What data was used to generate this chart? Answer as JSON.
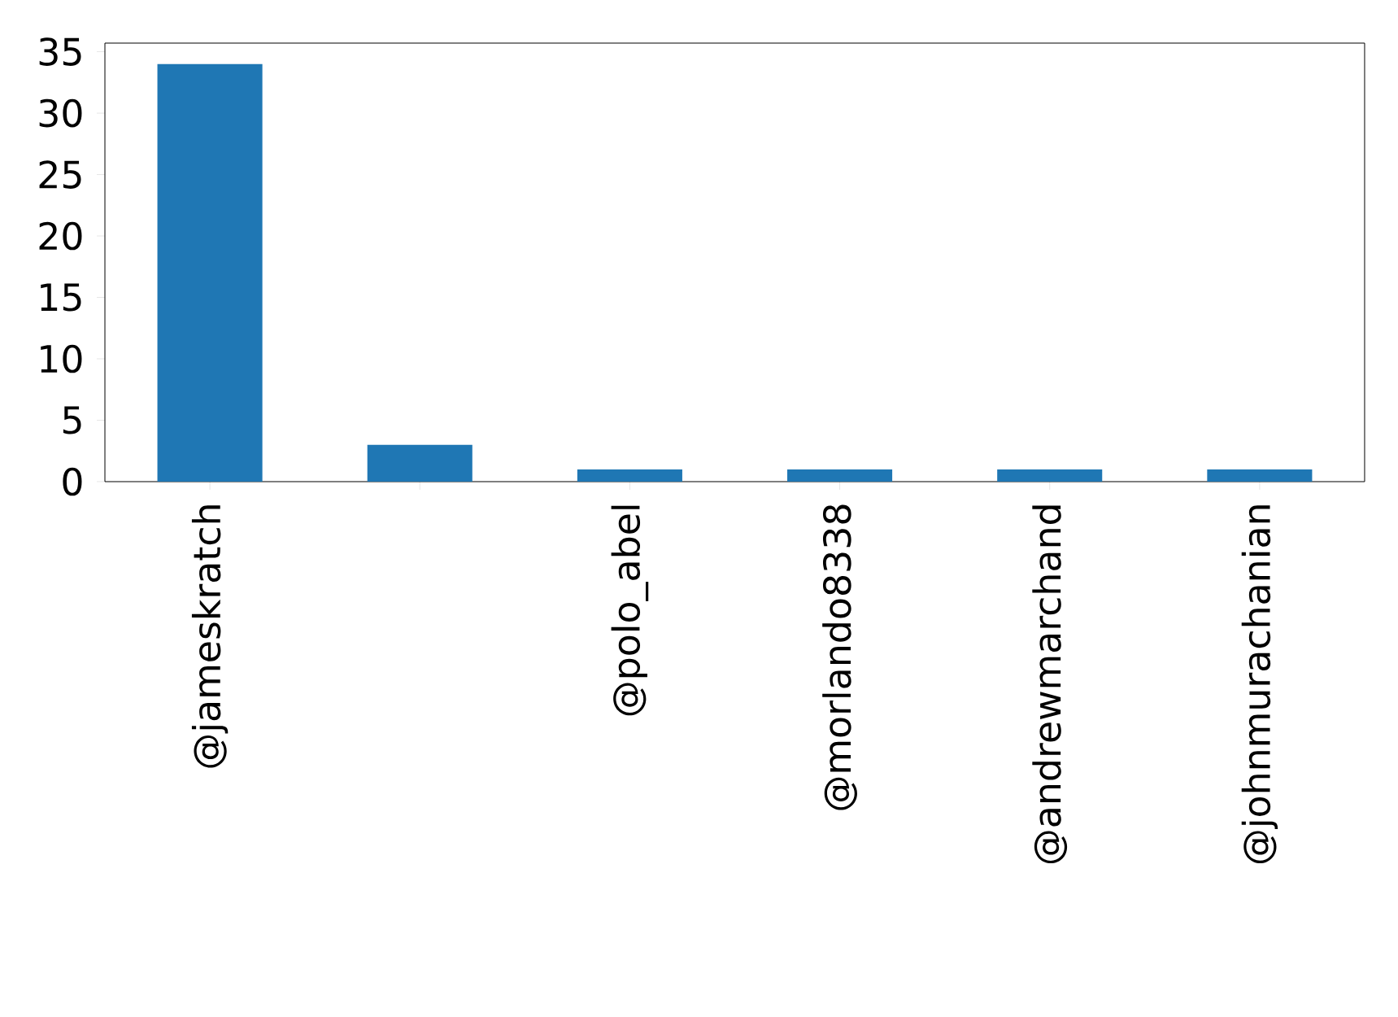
{
  "chart_data": {
    "type": "bar",
    "categories": [
      "@jameskratch",
      null,
      "@polo_abel",
      "@morlando8338",
      "@andrewmarchand",
      "@johnmurachanian"
    ],
    "values": [
      34,
      3,
      1,
      1,
      1,
      1
    ],
    "color": "#1f77b4",
    "ylim": [
      0,
      35.7
    ],
    "yticks": [
      0,
      5,
      10,
      15,
      20,
      25,
      30,
      35
    ]
  }
}
